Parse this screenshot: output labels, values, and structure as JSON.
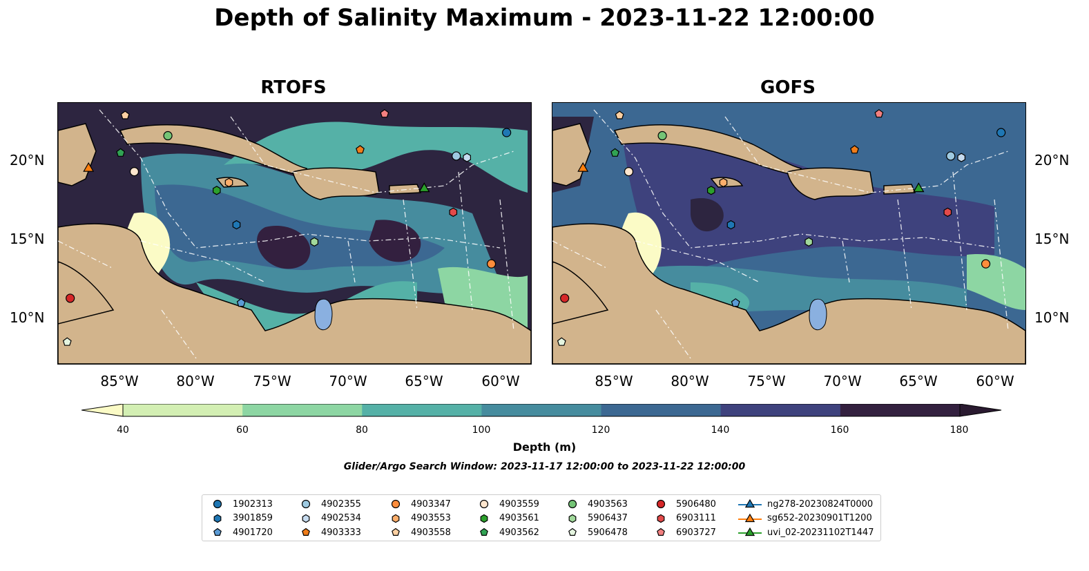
{
  "title": "Depth of Salinity Maximum - 2023-11-22 12:00:00",
  "panels": [
    {
      "name": "RTOFS"
    },
    {
      "name": "GOFS"
    }
  ],
  "lat_ticks": [
    "20°N",
    "15°N",
    "10°N"
  ],
  "lon_ticks": [
    "85°W",
    "80°W",
    "75°W",
    "70°W",
    "65°W",
    "60°W"
  ],
  "colorbar": {
    "ticks": [
      "40",
      "60",
      "80",
      "100",
      "120",
      "140",
      "160",
      "180"
    ],
    "colors": [
      "#fbfbc6",
      "#d3efb3",
      "#8dd6a3",
      "#55b1a7",
      "#468c9e",
      "#3c6892",
      "#3e427d",
      "#33203f",
      "#2a1a30"
    ],
    "label": "Depth (m)"
  },
  "search_window": "Glider/Argo Search Window: 2023-11-17 12:00:00 to 2023-11-22 12:00:00",
  "legend": [
    {
      "label": "1902313",
      "shape": "circle",
      "color": "#1f77b4"
    },
    {
      "label": "3901859",
      "shape": "hexagon",
      "color": "#1f77b4"
    },
    {
      "label": "4901720",
      "shape": "pentagon",
      "color": "#5b9bd5"
    },
    {
      "label": "4902355",
      "shape": "circle",
      "color": "#9ecae1"
    },
    {
      "label": "4902534",
      "shape": "hexagon",
      "color": "#c6dbef"
    },
    {
      "label": "4903333",
      "shape": "pentagon",
      "color": "#f07d1a"
    },
    {
      "label": "4903347",
      "shape": "circle",
      "color": "#fd8d3c"
    },
    {
      "label": "4903553",
      "shape": "hexagon",
      "color": "#fdae6b"
    },
    {
      "label": "4903558",
      "shape": "pentagon",
      "color": "#fdd0a2"
    },
    {
      "label": "4903559",
      "shape": "circle",
      "color": "#fee6ce"
    },
    {
      "label": "4903561",
      "shape": "hexagon",
      "color": "#2ca02c"
    },
    {
      "label": "4903562",
      "shape": "pentagon",
      "color": "#31a354"
    },
    {
      "label": "4903563",
      "shape": "circle",
      "color": "#74c476"
    },
    {
      "label": "5906437",
      "shape": "hexagon",
      "color": "#a1d99b"
    },
    {
      "label": "5906478",
      "shape": "pentagon",
      "color": "#e5f5e0"
    },
    {
      "label": "5906480",
      "shape": "circle",
      "color": "#d62728"
    },
    {
      "label": "6903111",
      "shape": "hexagon",
      "color": "#e34a4a"
    },
    {
      "label": "6903727",
      "shape": "pentagon",
      "color": "#f28080"
    },
    {
      "label": "ng278-20230824T0000",
      "shape": "triangle",
      "color": "#1f77b4"
    },
    {
      "label": "sg652-20230901T1200",
      "shape": "triangle",
      "color": "#ff7f0e"
    },
    {
      "label": "uvi_02-20231102T1447",
      "shape": "triangle",
      "color": "#2ca02c"
    }
  ],
  "map_extent": {
    "lon": [
      -89,
      -58
    ],
    "lat": [
      7,
      23.7
    ]
  },
  "floats": [
    {
      "id": "1902313",
      "lon": -59.6,
      "lat": 21.8
    },
    {
      "id": "3901859",
      "lon": -77.3,
      "lat": 15.9
    },
    {
      "id": "4901720",
      "lon": -77.0,
      "lat": 10.9
    },
    {
      "id": "4902355",
      "lon": -62.9,
      "lat": 20.3
    },
    {
      "id": "4902534",
      "lon": -62.2,
      "lat": 20.2
    },
    {
      "id": "4903333",
      "lon": -69.2,
      "lat": 20.7
    },
    {
      "id": "4903347",
      "lon": -60.6,
      "lat": 13.4
    },
    {
      "id": "4903553",
      "lon": -77.8,
      "lat": 18.6
    },
    {
      "id": "4903558",
      "lon": -84.6,
      "lat": 22.9
    },
    {
      "id": "4903559",
      "lon": -84.0,
      "lat": 19.3
    },
    {
      "id": "4903561",
      "lon": -78.6,
      "lat": 18.1
    },
    {
      "id": "4903562",
      "lon": -84.9,
      "lat": 20.5
    },
    {
      "id": "4903563",
      "lon": -81.8,
      "lat": 21.6
    },
    {
      "id": "5906437",
      "lon": -72.2,
      "lat": 14.8
    },
    {
      "id": "5906478",
      "lon": -88.4,
      "lat": 8.4
    },
    {
      "id": "5906480",
      "lon": -88.2,
      "lat": 11.2
    },
    {
      "id": "6903111",
      "lon": -63.1,
      "lat": 16.7
    },
    {
      "id": "6903727",
      "lon": -67.6,
      "lat": 23.0
    },
    {
      "id": "ng278-20230824T0000",
      "lon": -65.0,
      "lat": 18.2
    },
    {
      "id": "sg652-20230901T1200",
      "lon": -87.0,
      "lat": 19.5
    },
    {
      "id": "uvi_02-20231102T1447",
      "lon": -65.0,
      "lat": 18.2
    }
  ]
}
